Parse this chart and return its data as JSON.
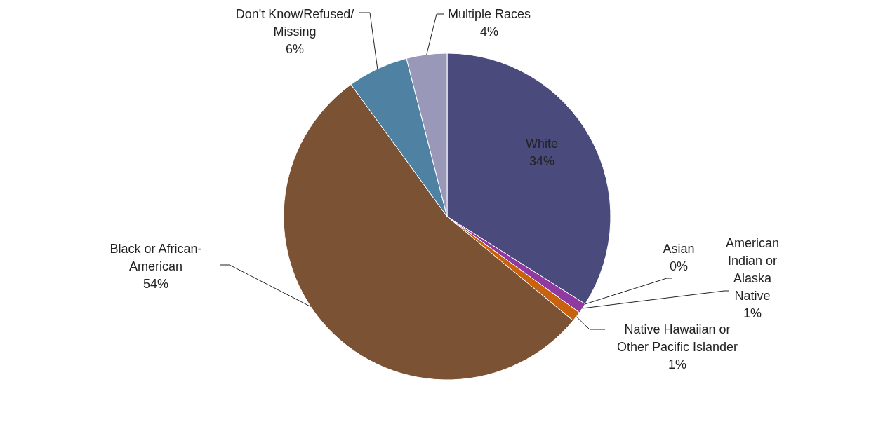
{
  "chart_data": {
    "type": "pie",
    "categories": [
      "White",
      "Asian",
      "American Indian or Alaska Native",
      "Native Hawaiian or Other Pacific Islander",
      "Black or African-American",
      "Don't Know/Refused/Missing",
      "Multiple Races"
    ],
    "values": [
      34,
      0,
      1,
      1,
      54,
      6,
      4
    ],
    "value_labels": [
      "34%",
      "0%",
      "1%",
      "1%",
      "54%",
      "6%",
      "4%"
    ],
    "colors": [
      "#4a4a7c",
      null,
      "#8e3aa0",
      "#c8620e",
      "#7b5234",
      "#4f82a2",
      "#9a98b8"
    ]
  }
}
